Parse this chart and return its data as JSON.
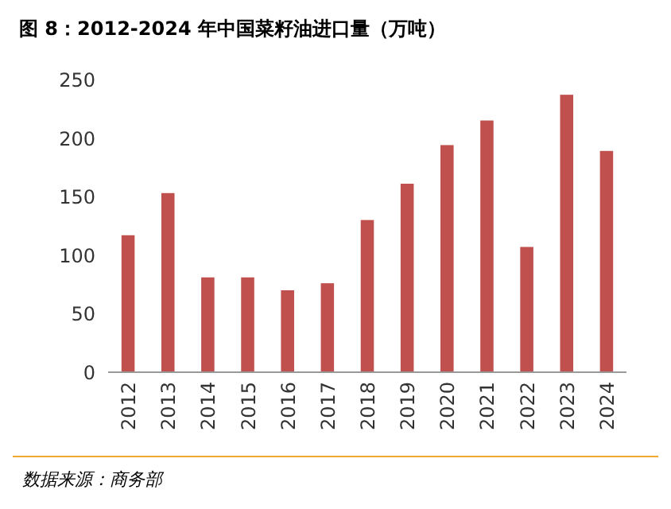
{
  "chart_data": {
    "type": "bar",
    "title": "图 8：2012-2024 年中国菜籽油进口量（万吨）",
    "categories": [
      "2012",
      "2013",
      "2014",
      "2015",
      "2016",
      "2017",
      "2018",
      "2019",
      "2020",
      "2021",
      "2022",
      "2023",
      "2024"
    ],
    "values": [
      117,
      153,
      81,
      81,
      70,
      76,
      130,
      161,
      194,
      215,
      107,
      237,
      189
    ],
    "color": "#c0504d",
    "ylim": [
      0,
      250
    ],
    "yticks": [
      0,
      50,
      100,
      150,
      200,
      250
    ],
    "grid": false,
    "annotations": [
      "数据来源：商务部"
    ]
  }
}
